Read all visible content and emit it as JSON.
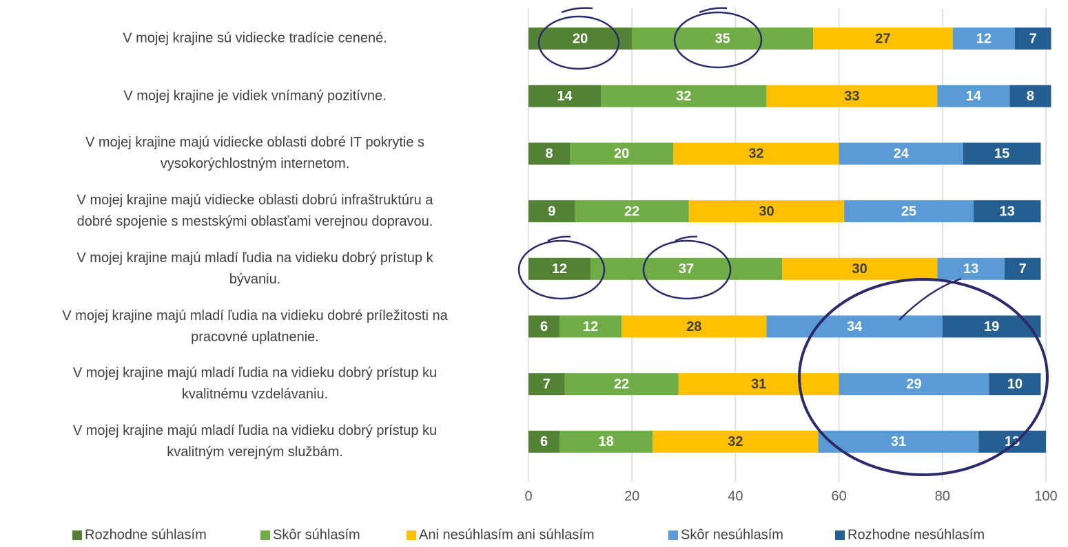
{
  "chart_data": {
    "type": "stacked-bar-horizontal",
    "categories": [
      "V mojej krajine sú vidiecke tradície cenené.",
      "V mojej krajine je vidiek vnímaný pozitívne.",
      "V mojej krajine majú vidiecke oblasti dobré IT pokrytie s\nvysokorýchlostným internetom.",
      "V mojej krajine majú vidiecke oblasti dobrú infraštruktúru a\ndobré spojenie s mestskými oblasťami verejnou dopravou.",
      "V mojej krajine majú mladí ľudia na vidieku dobrý prístup k\nbývaniu.",
      "V mojej krajine majú mladí ľudia na vidieku dobré príležitosti na\npracovné uplatnenie.",
      "V mojej krajine majú mladí ľudia na vidieku dobrý prístup ku\nkvalitnému vzdelávaniu.",
      "V mojej krajine majú mladí ľudia na vidieku dobrý prístup ku\nkvalitným verejným službám."
    ],
    "series": [
      {
        "name": "Rozhodne súhlasím",
        "color": "#548235",
        "values": [
          20,
          14,
          8,
          9,
          12,
          6,
          7,
          6
        ]
      },
      {
        "name": "Skôr súhlasím",
        "color": "#70ad47",
        "values": [
          35,
          32,
          20,
          22,
          37,
          12,
          22,
          18
        ]
      },
      {
        "name": "Ani nesúhlasím ani súhlasím",
        "color": "#ffc000",
        "values": [
          27,
          33,
          32,
          30,
          30,
          28,
          31,
          32
        ]
      },
      {
        "name": "Skôr nesúhlasím",
        "color": "#5b9bd5",
        "values": [
          12,
          14,
          24,
          25,
          13,
          34,
          29,
          31
        ]
      },
      {
        "name": "Rozhodne nesúhlasím",
        "color": "#255e91",
        "values": [
          7,
          8,
          15,
          13,
          7,
          19,
          10,
          13
        ]
      }
    ],
    "xlim": [
      0,
      100
    ],
    "xticks": [
      0,
      20,
      40,
      60,
      80,
      100
    ],
    "grid": true,
    "legend": "bottom"
  }
}
